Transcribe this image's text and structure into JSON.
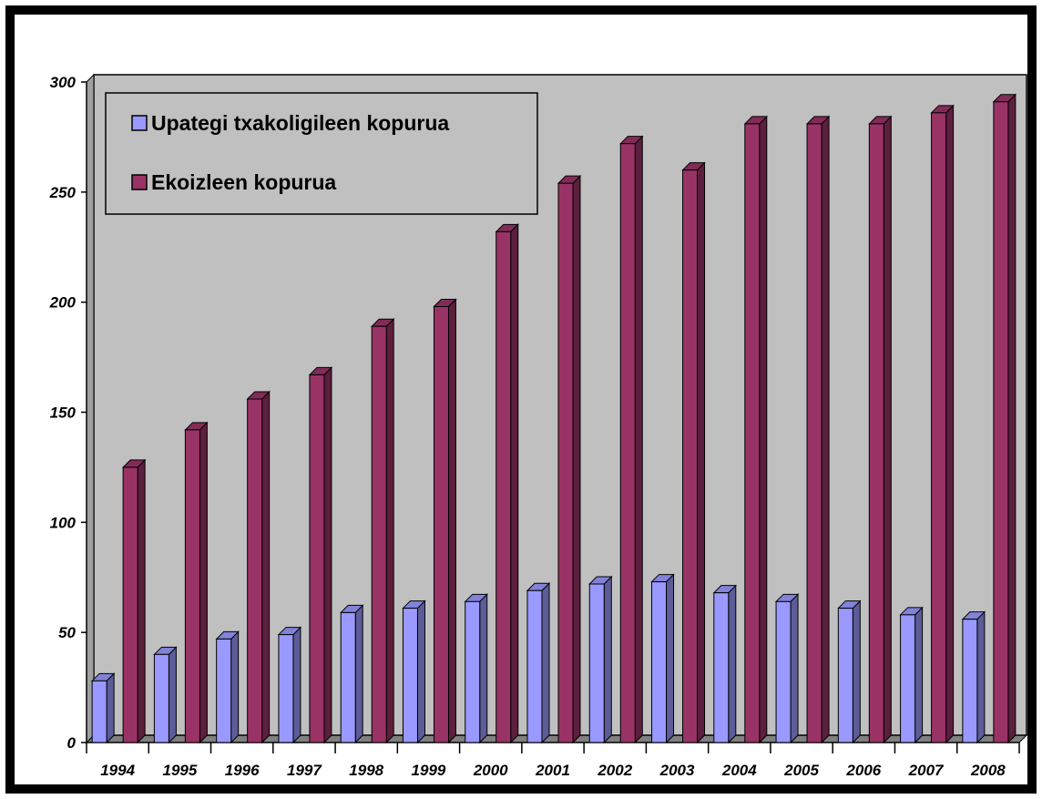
{
  "chart_data": {
    "type": "bar",
    "categories": [
      "1994",
      "1995",
      "1996",
      "1997",
      "1998",
      "1999",
      "2000",
      "2001",
      "2002",
      "2003",
      "2004",
      "2005",
      "2006",
      "2007",
      "2008"
    ],
    "series": [
      {
        "name": "Upategi txakoligileen kopurua",
        "color": "#9999ff",
        "values": [
          28,
          40,
          47,
          49,
          59,
          61,
          64,
          69,
          72,
          73,
          68,
          64,
          61,
          58,
          56
        ]
      },
      {
        "name": "Ekoizleen kopurua",
        "color": "#993366",
        "values": [
          125,
          142,
          156,
          167,
          189,
          198,
          232,
          254,
          272,
          260,
          281,
          281,
          281,
          286,
          291
        ]
      }
    ],
    "yticks": [
      "0",
      "50",
      "100",
      "150",
      "200",
      "250",
      "300"
    ],
    "ylim": [
      0,
      300
    ],
    "grid": false,
    "legend_position": "top-left",
    "plot_background": "#c0c0c0"
  }
}
